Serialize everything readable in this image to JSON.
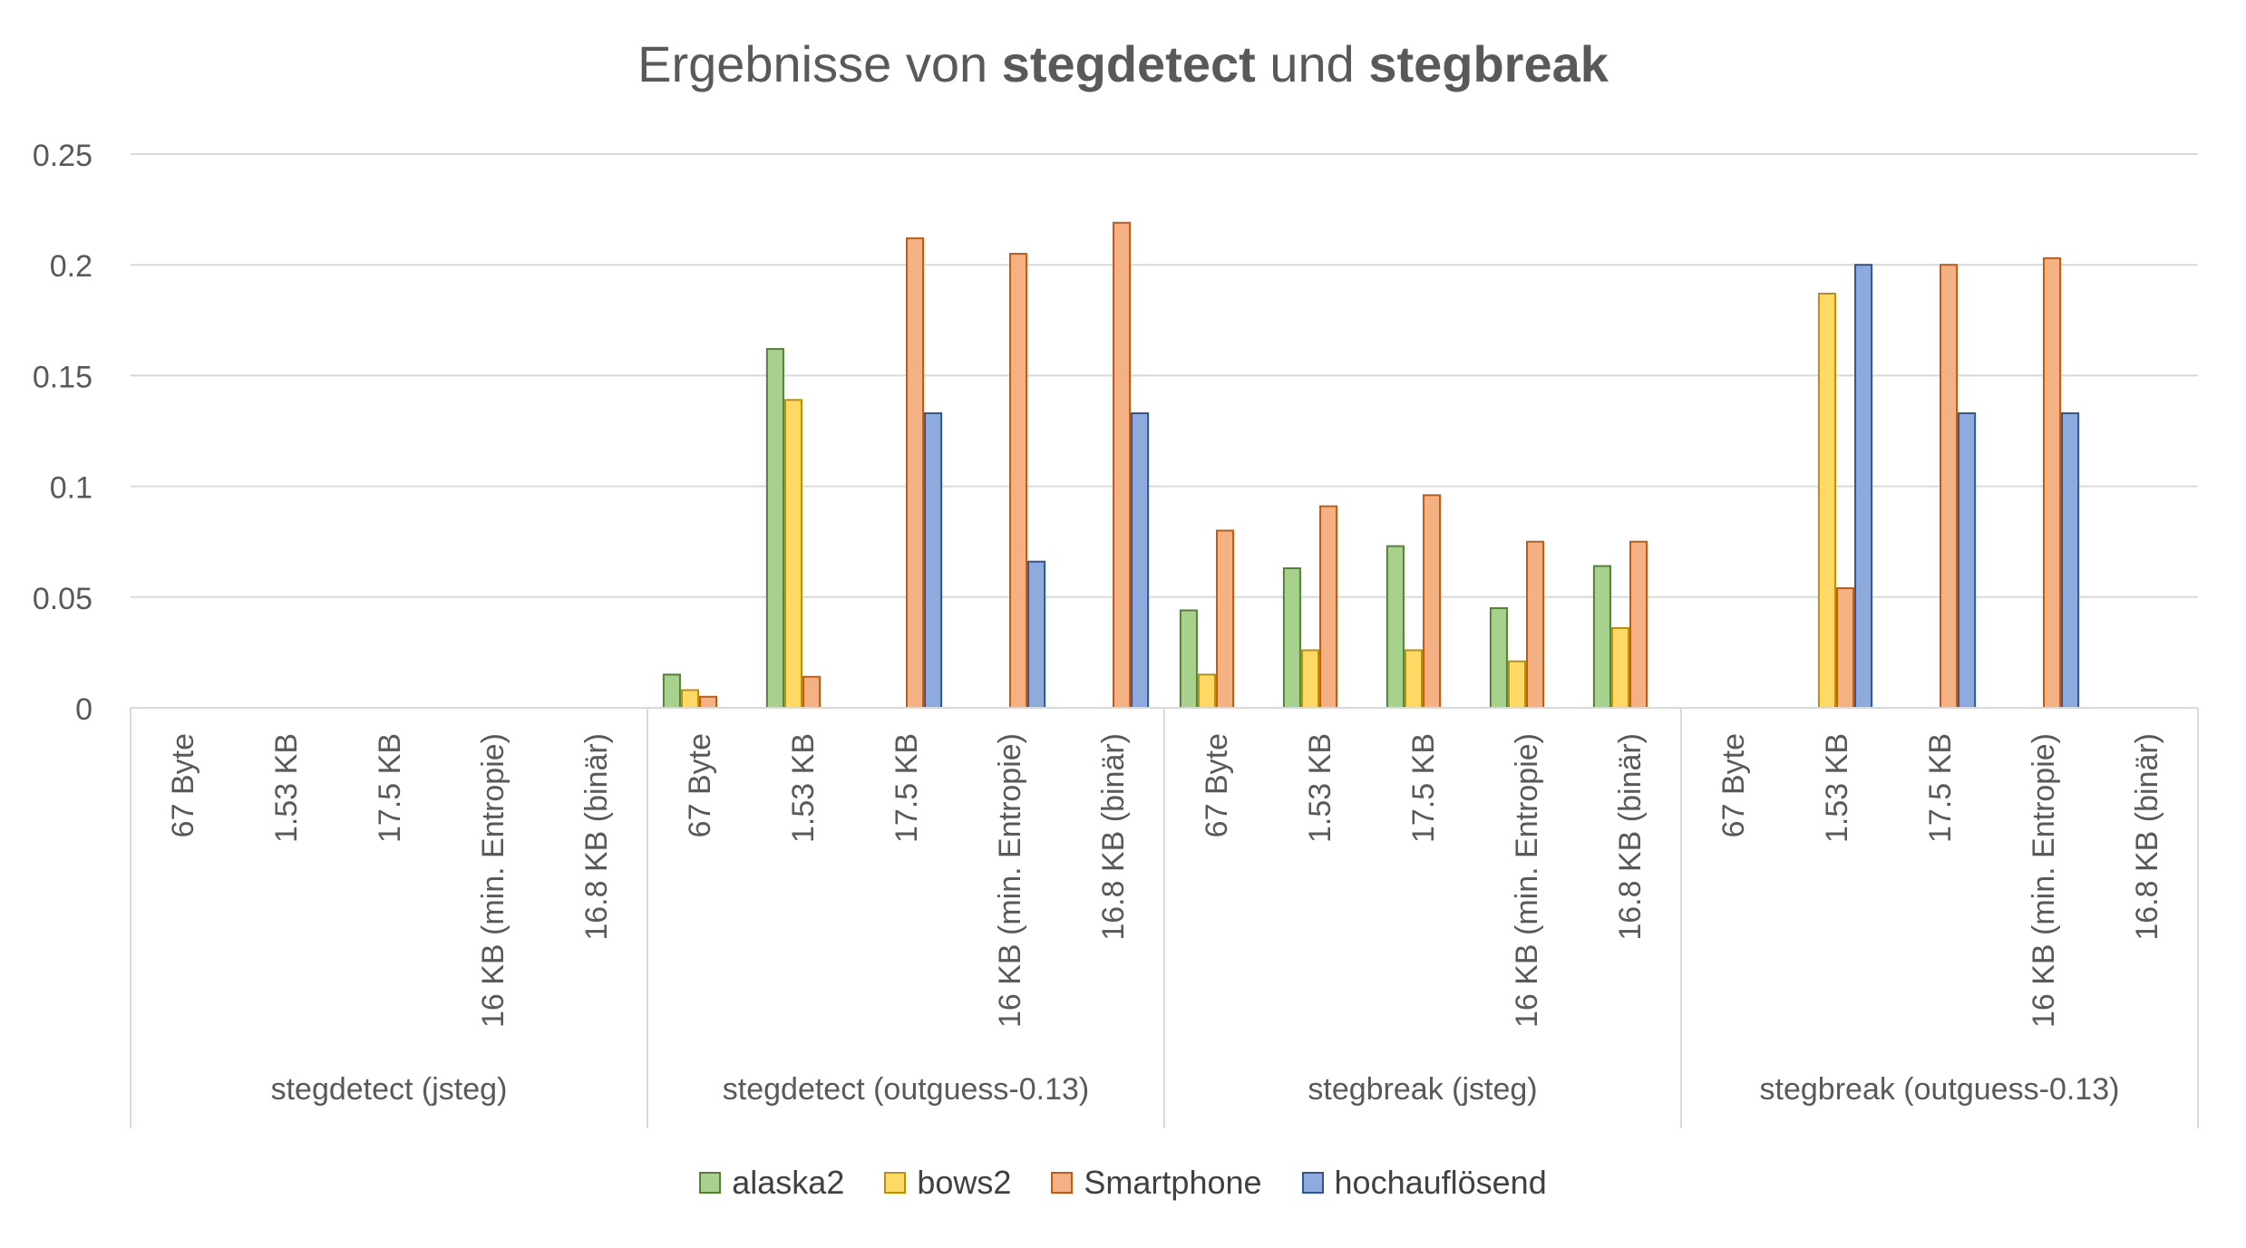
{
  "title": {
    "prefix": "Ergebnisse von ",
    "bold1": "stegdetect",
    "middle": " und ",
    "bold2": "stegbreak"
  },
  "chart_data": {
    "type": "bar",
    "ylim": [
      0,
      0.25
    ],
    "yticks": [
      "0",
      "0.05",
      "0.1",
      "0.15",
      "0.2",
      "0.25"
    ],
    "ytick_values": [
      0,
      0.05,
      0.1,
      0.15,
      0.2,
      0.25
    ],
    "grid": true,
    "legend_position": "bottom",
    "groups": [
      "stegdetect (jsteg)",
      "stegdetect (outguess-0.13)",
      "stegbreak (jsteg)",
      "stegbreak (outguess-0.13)"
    ],
    "subcategories": [
      "67 Byte",
      "1.53 KB",
      "17.5 KB",
      "16 KB (min. Entropie)",
      "16.8 KB (binär)"
    ],
    "series": [
      {
        "name": "alaska2",
        "fill": "#a9d18e",
        "stroke": "#548235",
        "values": [
          [
            0,
            0,
            0,
            0,
            0
          ],
          [
            0.015,
            0.162,
            0,
            0,
            0
          ],
          [
            0.044,
            0.063,
            0.073,
            0.045,
            0.064
          ],
          [
            0,
            0,
            0,
            0,
            0
          ]
        ]
      },
      {
        "name": "bows2",
        "fill": "#ffd966",
        "stroke": "#bf9000",
        "values": [
          [
            0,
            0,
            0,
            0,
            0
          ],
          [
            0.008,
            0.139,
            0,
            0,
            0
          ],
          [
            0.015,
            0.026,
            0.026,
            0.021,
            0.036
          ],
          [
            0,
            0.187,
            0,
            0,
            0
          ]
        ]
      },
      {
        "name": "Smartphone",
        "fill": "#f4b183",
        "stroke": "#c55a11",
        "values": [
          [
            0,
            0,
            0,
            0,
            0
          ],
          [
            0.005,
            0.014,
            0.212,
            0.205,
            0.219
          ],
          [
            0.08,
            0.091,
            0.096,
            0.075,
            0.075
          ],
          [
            0,
            0.054,
            0.2,
            0.203,
            0
          ]
        ]
      },
      {
        "name": "hochauflösend",
        "fill": "#8faadc",
        "stroke": "#2f5597",
        "values": [
          [
            0,
            0,
            0,
            0,
            0
          ],
          [
            0,
            0,
            0.133,
            0.066,
            0.133
          ],
          [
            0,
            0,
            0,
            0,
            0
          ],
          [
            0,
            0.2,
            0.133,
            0.133,
            0
          ]
        ]
      }
    ]
  }
}
